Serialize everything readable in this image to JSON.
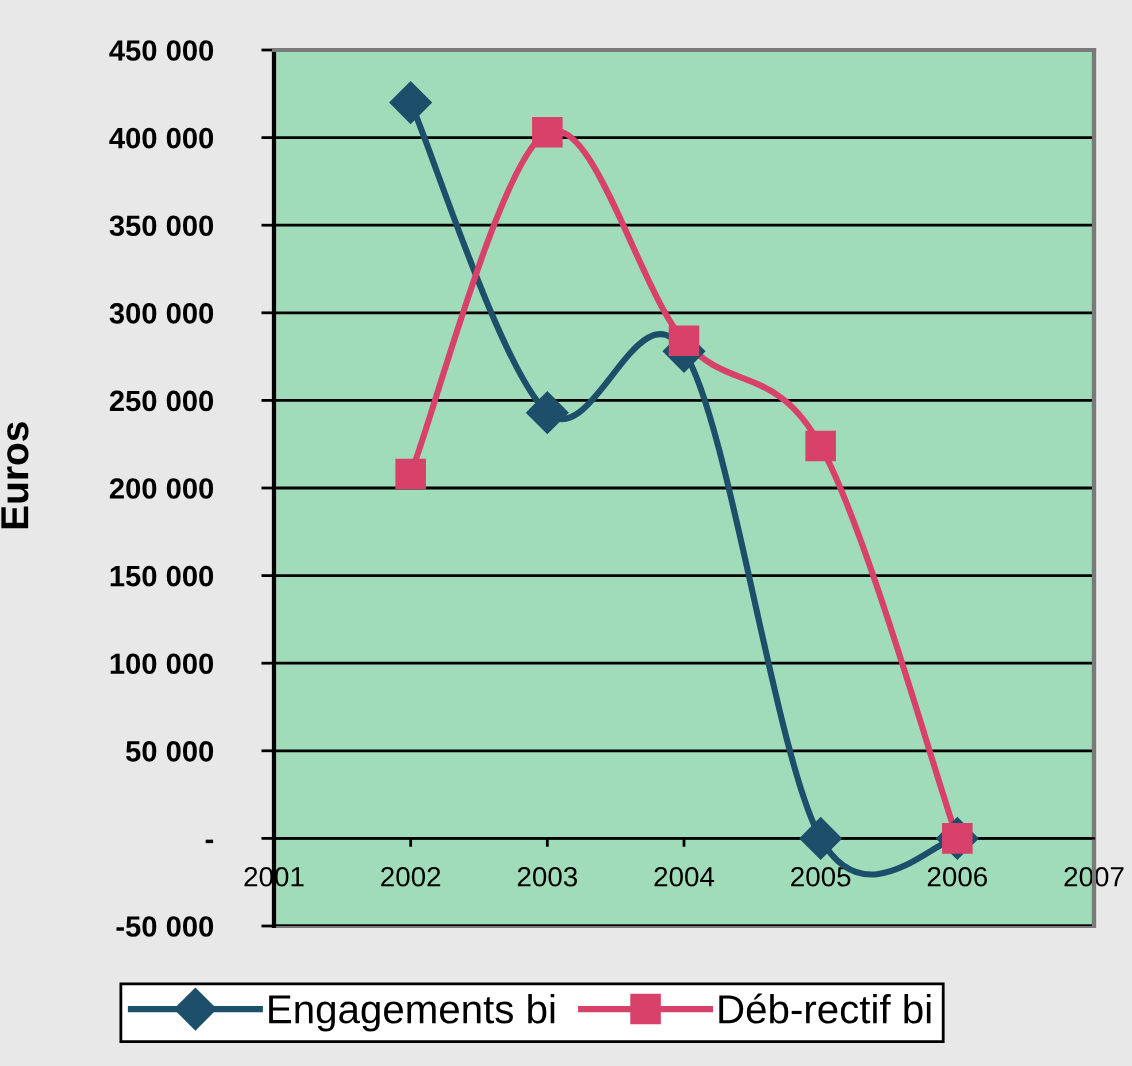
{
  "chart_data": {
    "type": "line",
    "ylabel": "Euros",
    "x": [
      2002,
      2003,
      2004,
      2005,
      2006
    ],
    "series": [
      {
        "name": "Engagements bi",
        "color": "#1d4f6a",
        "marker": "diamond",
        "values": [
          420000,
          243000,
          278000,
          0,
          0
        ]
      },
      {
        "name": "Déb-rectif bi",
        "color": "#d8416a",
        "marker": "square",
        "values": [
          208000,
          403000,
          284000,
          224000,
          0
        ]
      }
    ],
    "xlim": [
      2001,
      2007
    ],
    "xticks": [
      2001,
      2002,
      2003,
      2004,
      2005,
      2006,
      2007
    ],
    "ylim": [
      -50000,
      450000
    ],
    "yticks": [
      {
        "value": -50000,
        "label": "-50 000"
      },
      {
        "value": 0,
        "label": "-"
      },
      {
        "value": 50000,
        "label": "50 000"
      },
      {
        "value": 100000,
        "label": "100 000"
      },
      {
        "value": 150000,
        "label": "150 000"
      },
      {
        "value": 200000,
        "label": "200 000"
      },
      {
        "value": 250000,
        "label": "250 000"
      },
      {
        "value": 300000,
        "label": "300 000"
      },
      {
        "value": 350000,
        "label": "350 000"
      },
      {
        "value": 400000,
        "label": "400 000"
      },
      {
        "value": 450000,
        "label": "450 000"
      }
    ],
    "grid": "y",
    "legend": "bottom",
    "line_style": "solid"
  }
}
